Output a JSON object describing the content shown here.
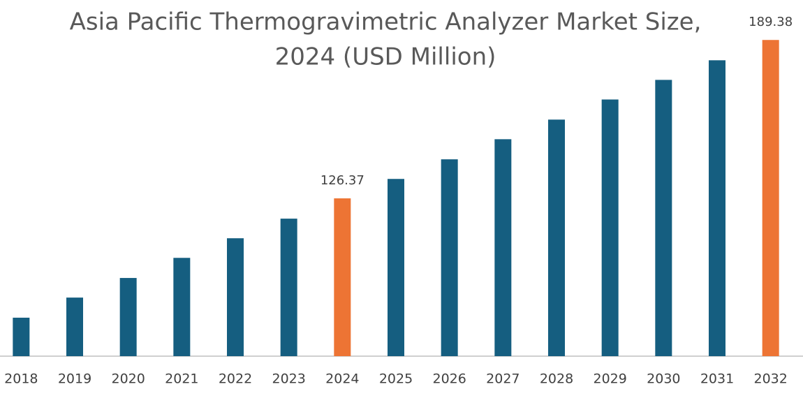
{
  "chart_data": {
    "type": "bar",
    "title": [
      "Asia Pacific Thermogravimetric Analyzer Market Size,",
      "2024 (USD Million)"
    ],
    "categories": [
      "2018",
      "2019",
      "2020",
      "2021",
      "2022",
      "2023",
      "2024",
      "2025",
      "2026",
      "2027",
      "2028",
      "2029",
      "2030",
      "2031",
      "2032"
    ],
    "values": [
      78.9,
      86.9,
      94.7,
      102.7,
      110.5,
      118.3,
      126.37,
      134.1,
      141.9,
      149.9,
      157.7,
      165.7,
      173.5,
      181.3,
      189.38
    ],
    "color": "#155e80",
    "highlight_color": "#ed7434",
    "highlight": [
      6,
      14
    ],
    "ylim": [
      63.6,
      200
    ],
    "grid": false
  }
}
